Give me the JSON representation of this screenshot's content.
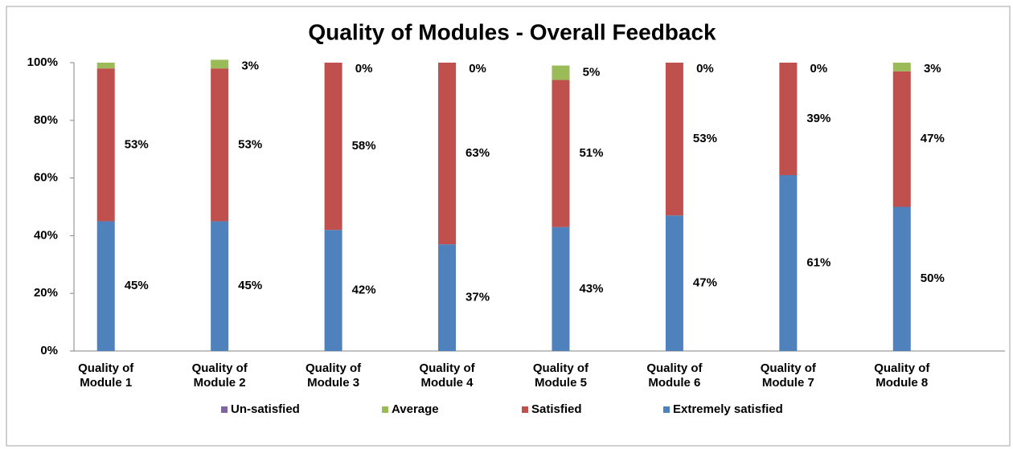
{
  "chart_data": {
    "type": "bar",
    "stacked": true,
    "title": "Quality of Modules - Overall Feedback",
    "categories": [
      "Quality of Module 1",
      "Quality of Module 2",
      "Quality of Module 3",
      "Quality of Module 4",
      "Quality of Module 5",
      "Quality of Module 6",
      "Quality of Module 7",
      "Quality of Module 8"
    ],
    "series": [
      {
        "name": "Un-satisfied",
        "color": "#8064a2",
        "values": [
          0,
          0,
          0,
          0,
          0,
          0,
          0,
          0
        ]
      },
      {
        "name": "Average",
        "color": "#9bbb59",
        "values": [
          2,
          3,
          0,
          0,
          5,
          0,
          0,
          3
        ],
        "value_labels": [
          null,
          "3%",
          "0%",
          "0%",
          "5%",
          "0%",
          "0%",
          "3%"
        ]
      },
      {
        "name": "Satisfied",
        "color": "#c0504d",
        "values": [
          53,
          53,
          58,
          63,
          51,
          53,
          39,
          47
        ],
        "value_labels": [
          "53%",
          "53%",
          "58%",
          "63%",
          "51%",
          "53%",
          "39%",
          "47%"
        ]
      },
      {
        "name": "Extremely satisfied",
        "color": "#4f81bd",
        "values": [
          45,
          45,
          42,
          37,
          43,
          47,
          61,
          50
        ],
        "value_labels": [
          "45%",
          "45%",
          "42%",
          "37%",
          "43%",
          "47%",
          "61%",
          "50%"
        ]
      }
    ],
    "ylim": [
      0,
      100
    ],
    "yticks": [
      {
        "value": 0,
        "label": "0%"
      },
      {
        "value": 20,
        "label": "20%"
      },
      {
        "value": 40,
        "label": "40%"
      },
      {
        "value": 60,
        "label": "60%"
      },
      {
        "value": 80,
        "label": "80%"
      },
      {
        "value": 100,
        "label": "100%"
      }
    ],
    "grid": false,
    "legend": "bottom"
  }
}
